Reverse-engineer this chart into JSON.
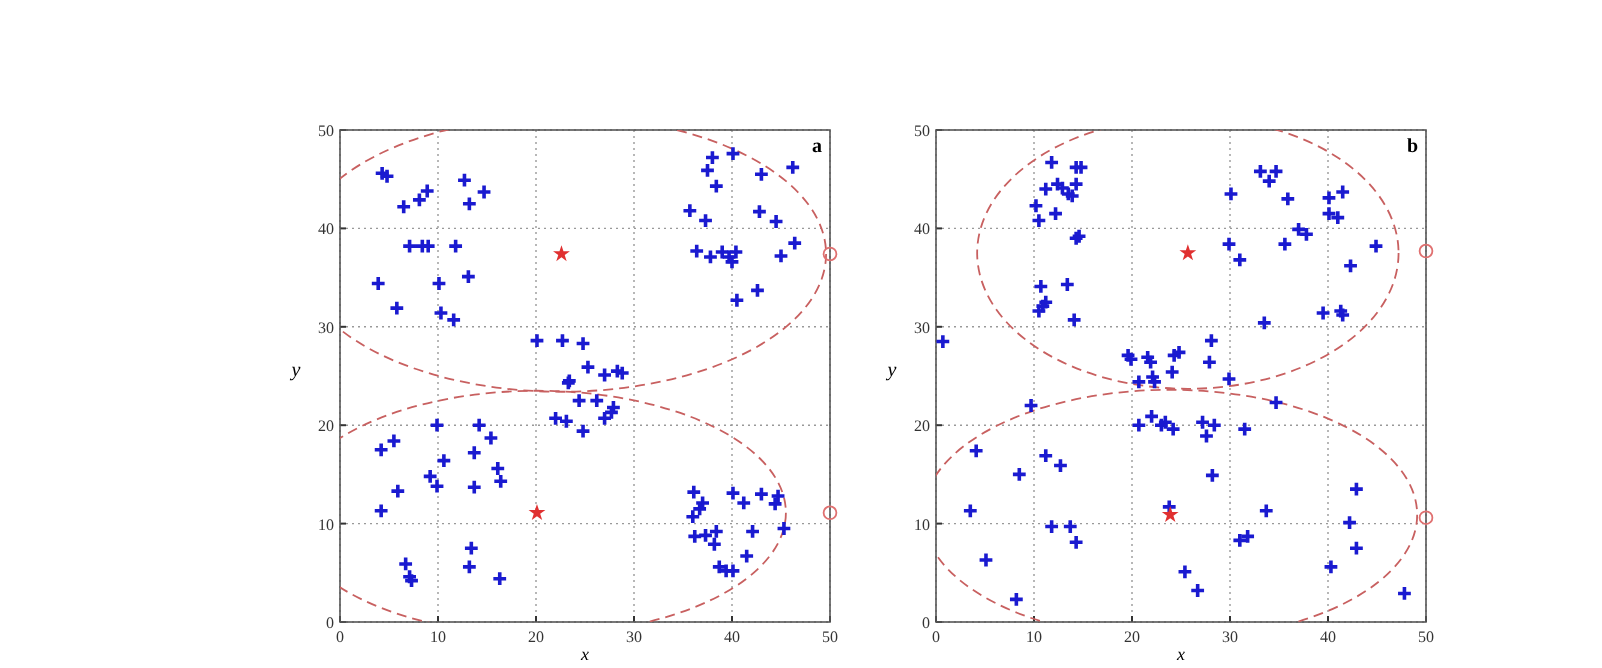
{
  "chart_data": [
    {
      "type": "scatter",
      "xlabel": "x",
      "ylabel": "y",
      "annotations": [
        "a"
      ],
      "xlim": [
        0,
        50
      ],
      "ylim": [
        0,
        50
      ],
      "xticks": [
        0,
        10,
        20,
        30,
        40,
        50
      ],
      "yticks": [
        0,
        10,
        20,
        30,
        40,
        50
      ],
      "grid": true,
      "series": [
        {
          "color": "#1a1ad0",
          "marker": "cross",
          "x": [
            4.3,
            4.8,
            6.5,
            8.1,
            8.9,
            12.7,
            13.2,
            14.7,
            7.1,
            8.4,
            9.0,
            11.8,
            3.9,
            10.1,
            13.1,
            5.8,
            10.3,
            11.6,
            38,
            37.5,
            38.4,
            40.1,
            43,
            46.2,
            35.7,
            37.3,
            42.8,
            44.5,
            36.4,
            37.8,
            39,
            39.7,
            40,
            40.4,
            45,
            46.4,
            42.6,
            40.5,
            20.1,
            22.7,
            24.8,
            25.3,
            23.4,
            23.3,
            27,
            28.3,
            28.8,
            24.4,
            26.2,
            22,
            23.1,
            24.8,
            27.7,
            27.9,
            27,
            4.2,
            5.5,
            9.9,
            14.2,
            15.4,
            10.6,
            13.7,
            16.1,
            16.4,
            9.2,
            9.9,
            5.9,
            13.7,
            4.2,
            13.4,
            13.2,
            6.7,
            7.1,
            7.3,
            16.3,
            36.1,
            37,
            36.7,
            36,
            36.2,
            37.3,
            38.4,
            38.2,
            38.7,
            39.4,
            40.1,
            40.1,
            41.2,
            43,
            44.7,
            44.4,
            45.3,
            42.1,
            41.5
          ],
          "values": [
            45.6,
            45.3,
            42.2,
            42.9,
            43.8,
            44.9,
            42.5,
            43.7,
            38.2,
            38.2,
            38.2,
            38.2,
            34.4,
            34.4,
            35.1,
            31.9,
            31.4,
            30.7,
            47.2,
            45.9,
            44.3,
            47.6,
            45.5,
            46.2,
            41.8,
            40.8,
            41.7,
            40.7,
            37.7,
            37.1,
            37.6,
            37.1,
            36.6,
            37.6,
            37.2,
            38.5,
            33.7,
            32.7,
            28.6,
            28.6,
            28.3,
            25.9,
            24.5,
            24.3,
            25.1,
            25.5,
            25.3,
            22.5,
            22.5,
            20.7,
            20.4,
            19.4,
            21.3,
            21.8,
            20.7,
            17.5,
            18.4,
            20,
            20,
            18.7,
            16.4,
            17.2,
            15.6,
            14.3,
            14.8,
            13.8,
            13.3,
            13.7,
            11.3,
            7.5,
            5.6,
            5.9,
            4.6,
            4.2,
            4.4,
            13.2,
            12.1,
            11.5,
            10.7,
            8.7,
            8.8,
            9.2,
            7.9,
            5.6,
            5.2,
            5.2,
            13.1,
            12.1,
            13,
            12.8,
            12,
            9.5,
            9.2,
            6.7
          ]
        },
        {
          "color": "#e03030",
          "marker": "star",
          "x": [
            22.6,
            20.1
          ],
          "values": [
            37.4,
            11.1
          ]
        },
        {
          "color": "#e07070",
          "marker": "circle",
          "x": [
            50,
            50
          ],
          "values": [
            37.4,
            11.1
          ]
        }
      ]
    },
    {
      "type": "scatter",
      "xlabel": "x",
      "ylabel": "y",
      "annotations": [
        "b"
      ],
      "xlim": [
        0,
        50
      ],
      "ylim": [
        0,
        50
      ],
      "xticks": [
        0,
        10,
        20,
        30,
        40,
        50
      ],
      "yticks": [
        0,
        10,
        20,
        30,
        40,
        50
      ],
      "grid": true,
      "series": [
        {
          "color": "#1a1ad0",
          "marker": "cross",
          "x": [
            11.8,
            14.3,
            14.8,
            11.2,
            12.4,
            12.9,
            13.5,
            13.9,
            14.3,
            10.2,
            10.5,
            12.2,
            14.3,
            14.6,
            10.7,
            13.4,
            11.2,
            10.5,
            10.9,
            14.1,
            0.7,
            33.1,
            34,
            34.7,
            30.1,
            35.9,
            29.9,
            31,
            35.6,
            37,
            37.8,
            40.1,
            41.5,
            40.1,
            41,
            44.9,
            42.3,
            39.5,
            41.3,
            41.5,
            33.5,
            19.6,
            19.9,
            21.6,
            21.9,
            24.3,
            24.8,
            24.1,
            20.7,
            22.1,
            22.3,
            28.1,
            27.9,
            29.9,
            20.7,
            22,
            23,
            23.4,
            24.2,
            27.2,
            27.6,
            28.4,
            31.5,
            34.7,
            9.7,
            4.1,
            11.2,
            12.7,
            8.5,
            3.5,
            5.1,
            8.2,
            11.8,
            13.7,
            14.3,
            23.8,
            28.2,
            25.4,
            26.7,
            31,
            31.8,
            33.7,
            42.9,
            42.2,
            42.9,
            40.3,
            47.8
          ],
          "values": [
            46.7,
            46.2,
            46.2,
            44,
            44.5,
            44.1,
            43.5,
            43.3,
            44.5,
            42.3,
            40.8,
            41.5,
            39,
            39.2,
            34.1,
            34.3,
            32.5,
            31.6,
            32.1,
            30.7,
            28.5,
            45.8,
            44.8,
            45.8,
            43.5,
            43,
            38.4,
            36.8,
            38.4,
            39.9,
            39.4,
            43.1,
            43.7,
            41.5,
            41.1,
            38.2,
            36.2,
            31.4,
            31.6,
            31.2,
            30.4,
            27.1,
            26.7,
            26.9,
            26.4,
            27.1,
            27.4,
            25.4,
            24.4,
            24.9,
            24.4,
            28.6,
            26.4,
            24.7,
            20,
            20.9,
            20,
            20.3,
            19.6,
            20.3,
            18.9,
            20,
            19.6,
            22.3,
            22,
            17.4,
            16.9,
            15.9,
            15,
            11.3,
            6.3,
            2.3,
            9.7,
            9.7,
            8.1,
            11.7,
            14.9,
            5.1,
            3.2,
            8.3,
            8.7,
            11.3,
            13.5,
            10.1,
            7.5,
            5.6,
            2.9
          ]
        },
        {
          "color": "#e03030",
          "marker": "star",
          "x": [
            25.7,
            23.9
          ],
          "values": [
            37.5,
            10.9
          ]
        },
        {
          "color": "#e07070",
          "marker": "circle",
          "x": [
            50,
            50
          ],
          "values": [
            37.7,
            10.6
          ]
        }
      ]
    }
  ]
}
